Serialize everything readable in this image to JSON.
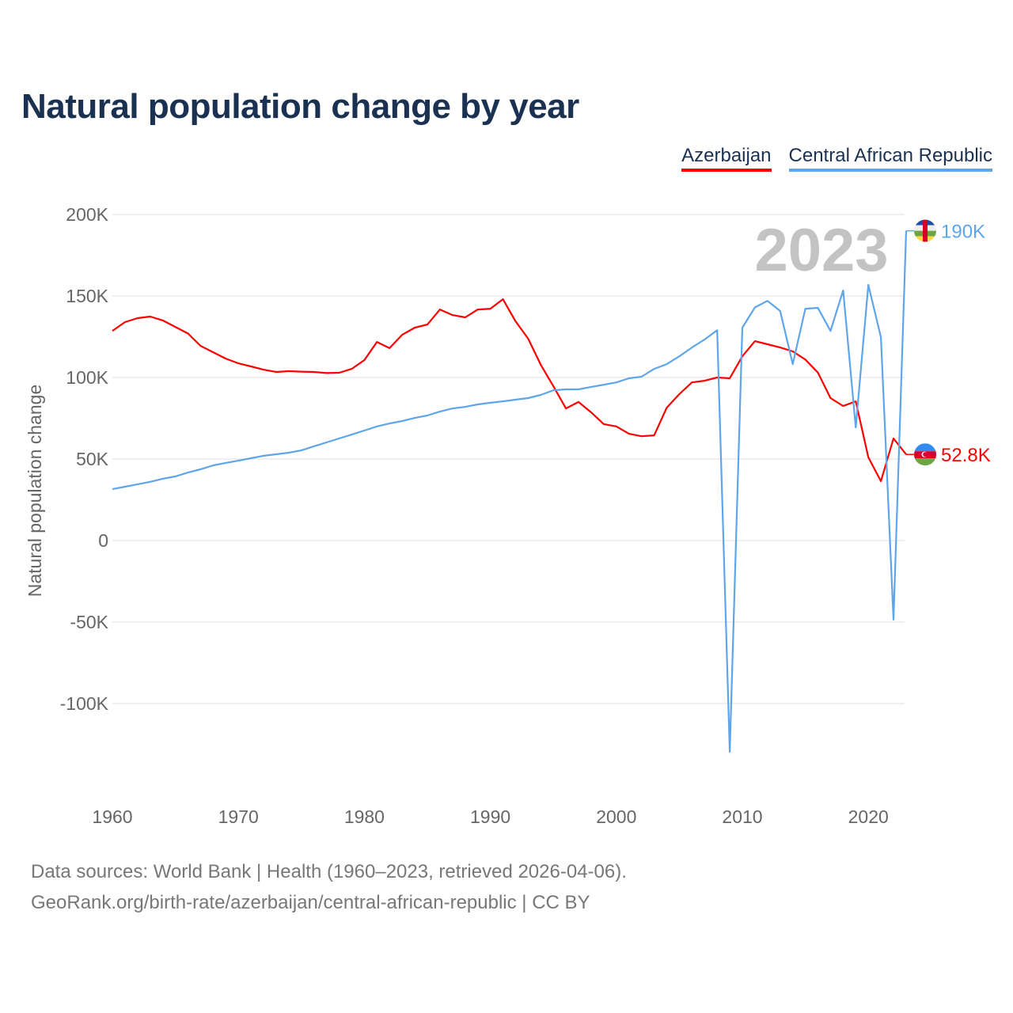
{
  "chart_data": {
    "type": "line",
    "title": "Natural population change by year",
    "xlabel": "",
    "ylabel": "Natural population change",
    "xlim": [
      1960,
      2023
    ],
    "ylim": [
      -150000,
      200000
    ],
    "yticks": [
      200000,
      150000,
      100000,
      50000,
      0,
      -50000,
      -100000
    ],
    "ytick_labels": [
      "200K",
      "150K",
      "100K",
      "50K",
      "0",
      "-50K",
      "-100K"
    ],
    "xticks": [
      1960,
      1970,
      1980,
      1990,
      2000,
      2010,
      2020
    ],
    "xtick_labels": [
      "1960",
      "1970",
      "1980",
      "1990",
      "2000",
      "2010",
      "2020"
    ],
    "grid": true,
    "legend_position": "top-right",
    "current_year_label": "2023",
    "x_start": 1960,
    "series": [
      {
        "name": "Azerbaijan",
        "color": "#ff0000",
        "end_label": "52.8K",
        "values": [
          128.6,
          134,
          136.4,
          137.4,
          135,
          131,
          127,
          119.4,
          115.5,
          111.6,
          108.7,
          106.8,
          104.8,
          103.4,
          103.9,
          103.6,
          103.4,
          102.7,
          102.9,
          105.3,
          110.7,
          121.8,
          118,
          126.2,
          130.6,
          132.5,
          141.7,
          138.3,
          136.9,
          141.7,
          142.2,
          148,
          134.5,
          123.8,
          107.8,
          94.7,
          81,
          85,
          78.6,
          71.4,
          70,
          65.5,
          64,
          64.5,
          81.5,
          89.8,
          97,
          98,
          100,
          99.5,
          113,
          122.3,
          120.4,
          118.4,
          116,
          111,
          103,
          87.4,
          82.5,
          85.4,
          51,
          36.4,
          62.6,
          52.8
        ]
      },
      {
        "name": "Central African Republic",
        "color": "#5ea5ea",
        "end_label": "190K",
        "values": [
          31.5,
          33,
          34.5,
          36,
          37.9,
          39.3,
          41.7,
          43.7,
          46.1,
          47.6,
          49,
          50.5,
          52,
          52.9,
          53.9,
          55.3,
          57.8,
          60.2,
          62.6,
          65,
          67.5,
          70,
          71.8,
          73.3,
          75.2,
          76.7,
          79.1,
          81,
          82,
          83.5,
          84.5,
          85.4,
          86.4,
          87.4,
          89.3,
          92.2,
          92.7,
          92.7,
          94.2,
          95.6,
          97,
          99.5,
          100.5,
          105.3,
          108.2,
          113,
          118.4,
          123.3,
          129,
          -129.6,
          130.6,
          143,
          147,
          140.8,
          108.2,
          142.2,
          142.7,
          128.6,
          153.4,
          69.4,
          156.8,
          124.7,
          -48.5,
          190
        ]
      }
    ],
    "value_unit": "thousands"
  },
  "footer": {
    "line1": "Data sources: World Bank | Health (1960–2023, retrieved 2026-04-06).",
    "line2": "GeoRank.org/birth-rate/azerbaijan/central-african-republic | CC BY"
  }
}
